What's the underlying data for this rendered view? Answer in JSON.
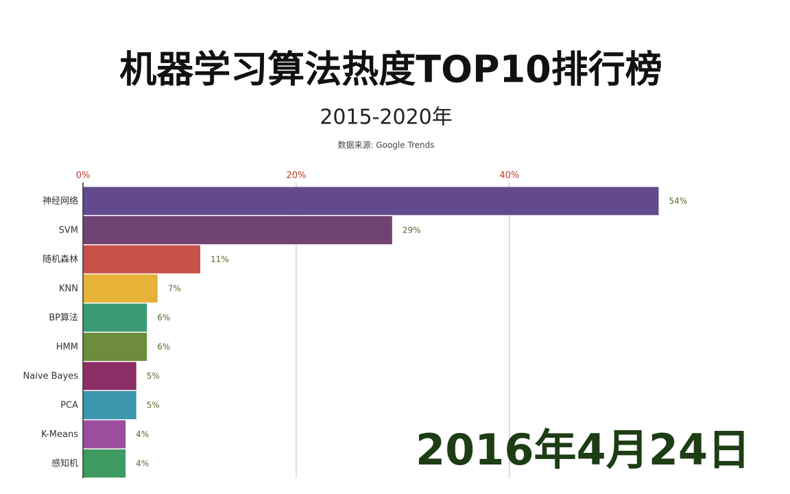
{
  "chart_data": {
    "type": "barh",
    "title": "机器学习算法热度TOP10排行榜",
    "subtitle": "2015-2020年",
    "source": "数据来源: Google Trends",
    "annotation": "2016年4月24日",
    "categories": [
      "神经网络",
      "SVM",
      "随机森林",
      "KNN",
      "BP算法",
      "HMM",
      "Naive Bayes",
      "PCA",
      "K-Means",
      "感知机"
    ],
    "values": [
      54,
      29,
      11,
      7,
      6,
      6,
      5,
      5,
      4,
      4
    ],
    "value_labels": [
      "54%",
      "29%",
      "11%",
      "7%",
      "6%",
      "6%",
      "5%",
      "5%",
      "4%",
      "4%"
    ],
    "colors": [
      "#634a8f",
      "#714373",
      "#c9504a",
      "#e6b237",
      "#3b9a73",
      "#6d8c3c",
      "#8c2f66",
      "#3b97ad",
      "#9b4e9e",
      "#3f9a62"
    ],
    "xlim": [
      0,
      66
    ],
    "xticks": [
      {
        "value": 0,
        "label": "0%"
      },
      {
        "value": 20,
        "label": "20%"
      },
      {
        "value": 40,
        "label": "40%"
      }
    ],
    "grid": true
  }
}
